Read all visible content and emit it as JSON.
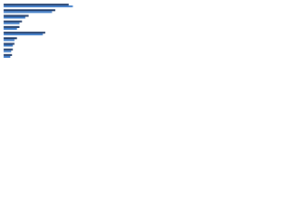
{
  "chart_data": {
    "type": "hbar",
    "categories": [
      null,
      null,
      null,
      null,
      null,
      null,
      null,
      null,
      null,
      null
    ],
    "series": [
      {
        "color": "#1f3a68",
        "values": [
          78,
          62,
          30,
          22,
          19,
          50,
          16,
          13,
          11,
          10
        ]
      },
      {
        "color": "#3d7cc9",
        "values": [
          83,
          58,
          26,
          19,
          16,
          47,
          13,
          11,
          9,
          8
        ]
      }
    ],
    "xlim": [
      0,
      100
    ]
  }
}
